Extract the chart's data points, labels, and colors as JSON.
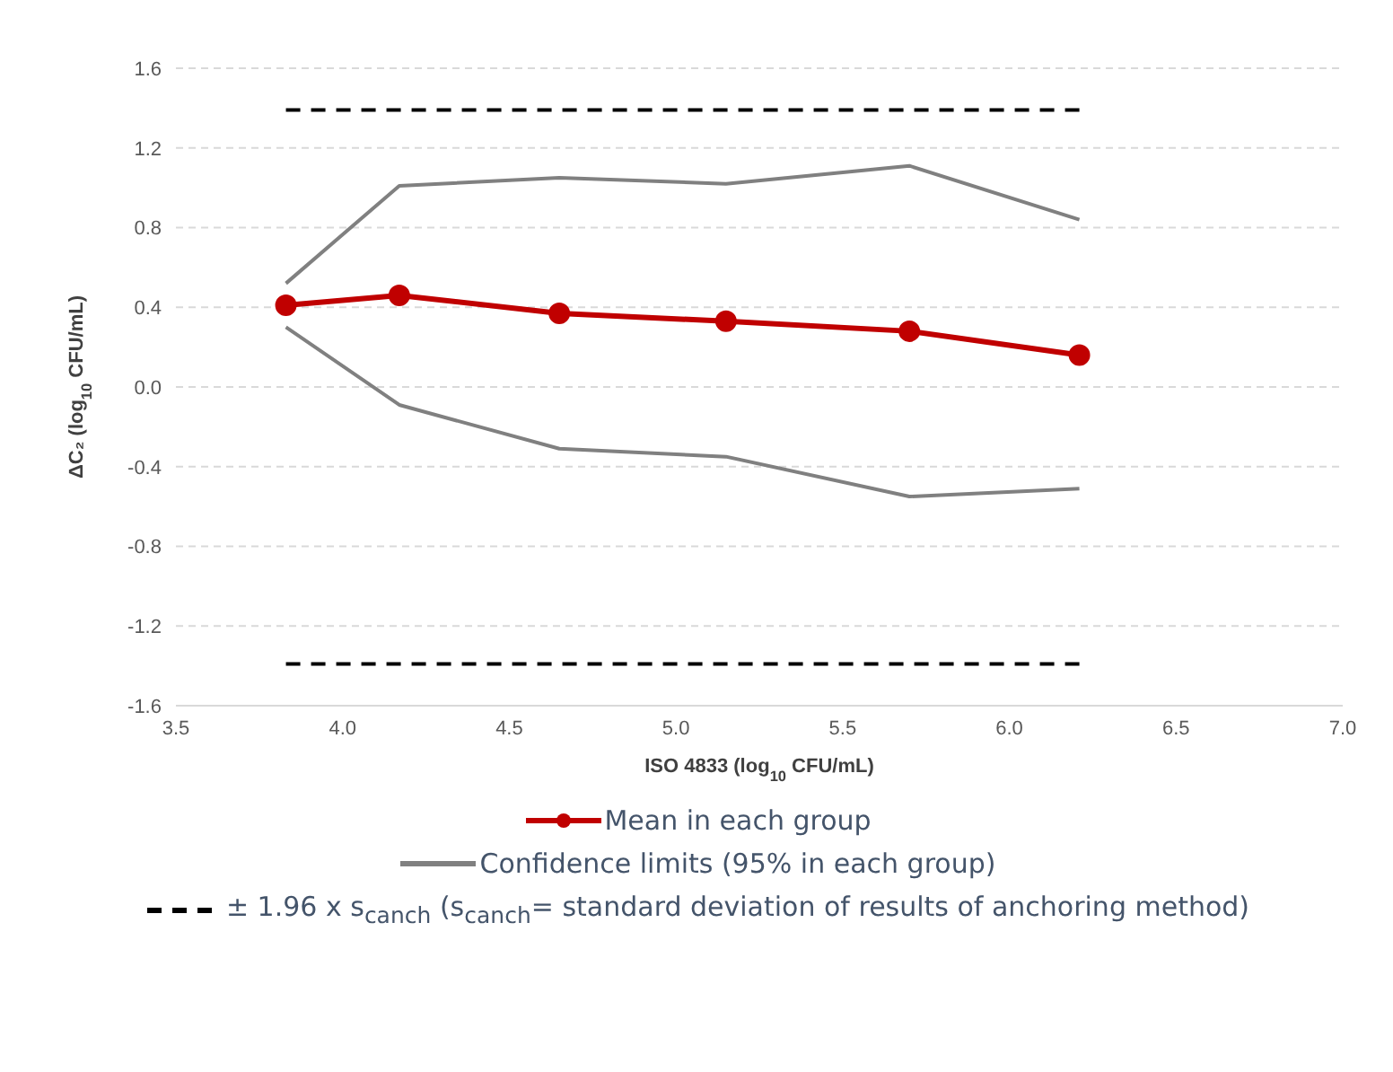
{
  "chart_data": {
    "type": "line",
    "xlabel": "ISO 4833 (log$_{10}$ CFU/mL)",
    "ylabel": "ΔC₂ (log$_{10}$ CFU/mL)",
    "xlim": [
      3.5,
      7.0
    ],
    "xticks": [
      {
        "value": 3.5,
        "label": "3.5"
      },
      {
        "value": 4,
        "label": "4.0"
      },
      {
        "value": 4.5,
        "label": "4.5"
      },
      {
        "value": 5,
        "label": "5.0"
      },
      {
        "value": 5.5,
        "label": "5.5"
      },
      {
        "value": 6,
        "label": "6.0"
      },
      {
        "value": 6.5,
        "label": "6.5"
      },
      {
        "value": 7,
        "label": "7.0"
      }
    ],
    "ylim": [
      -1.6,
      1.6
    ],
    "yticks": [
      -1.6,
      -1.2,
      -0.8,
      -0.4,
      {
        "value": 0,
        "label": "0.0"
      },
      0.4,
      0.8,
      1.2,
      1.6
    ],
    "grid": "y",
    "legend": "bottom",
    "x": [
      3.83,
      4.17,
      4.65,
      5.15,
      5.7,
      6.21
    ],
    "series": [
      {
        "name": "Mean in each group",
        "color": "#c00000",
        "values": [
          0.41,
          0.46,
          0.37,
          0.33,
          0.28,
          0.16
        ],
        "marker": "circle",
        "line_style": "solid"
      },
      {
        "name": "Confidence limits (95% in each group)",
        "color": "#808080",
        "values": [
          0.52,
          1.01,
          1.05,
          1.02,
          1.11,
          0.84
        ],
        "marker": "none",
        "line_style": "solid"
      },
      {
        "color": "#808080",
        "values": [
          0.3,
          -0.09,
          -0.31,
          -0.35,
          -0.55,
          -0.51
        ],
        "marker": "none",
        "line_style": "solid"
      },
      {
        "name": "± 1.96 x s$_{canch}$ (s$_{canch}$= standard deviation of results of anchoring method)",
        "color": "#000000",
        "values": [
          1.39,
          1.39,
          1.39,
          1.39,
          1.39,
          1.39
        ],
        "marker": "none",
        "line_style": "dashed"
      },
      {
        "color": "#000000",
        "values": [
          -1.39,
          -1.39,
          -1.39,
          -1.39,
          -1.39,
          -1.39
        ],
        "marker": "none",
        "line_style": "dashed"
      }
    ]
  }
}
